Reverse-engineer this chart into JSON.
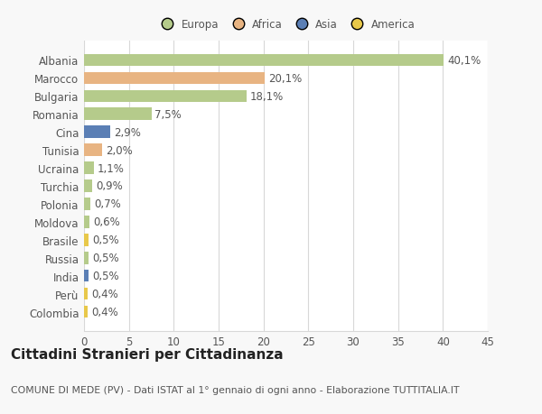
{
  "categories": [
    "Albania",
    "Marocco",
    "Bulgaria",
    "Romania",
    "Cina",
    "Tunisia",
    "Ucraina",
    "Turchia",
    "Polonia",
    "Moldova",
    "Brasile",
    "Russia",
    "India",
    "Perù",
    "Colombia"
  ],
  "values": [
    40.1,
    20.1,
    18.1,
    7.5,
    2.9,
    2.0,
    1.1,
    0.9,
    0.7,
    0.6,
    0.5,
    0.5,
    0.5,
    0.4,
    0.4
  ],
  "labels": [
    "40,1%",
    "20,1%",
    "18,1%",
    "7,5%",
    "2,9%",
    "2,0%",
    "1,1%",
    "0,9%",
    "0,7%",
    "0,6%",
    "0,5%",
    "0,5%",
    "0,5%",
    "0,4%",
    "0,4%"
  ],
  "colors": [
    "#b5cb8b",
    "#e8b482",
    "#b5cb8b",
    "#b5cb8b",
    "#5b7fb5",
    "#e8b482",
    "#b5cb8b",
    "#b5cb8b",
    "#b5cb8b",
    "#b5cb8b",
    "#e8c84a",
    "#b5cb8b",
    "#5b7fb5",
    "#e8c84a",
    "#e8c84a"
  ],
  "legend_labels": [
    "Europa",
    "Africa",
    "Asia",
    "America"
  ],
  "legend_colors": [
    "#b5cb8b",
    "#e8b482",
    "#5b7fb5",
    "#e8c84a"
  ],
  "title": "Cittadini Stranieri per Cittadinanza",
  "subtitle": "COMUNE DI MEDE (PV) - Dati ISTAT al 1° gennaio di ogni anno - Elaborazione TUTTITALIA.IT",
  "xlim": [
    0,
    45
  ],
  "xticks": [
    0,
    5,
    10,
    15,
    20,
    25,
    30,
    35,
    40,
    45
  ],
  "fig_bg_color": "#f8f8f8",
  "plot_bg_color": "#ffffff",
  "grid_color": "#d8d8d8",
  "bar_height": 0.68,
  "label_fontsize": 8.5,
  "tick_fontsize": 8.5,
  "title_fontsize": 11,
  "subtitle_fontsize": 7.8
}
